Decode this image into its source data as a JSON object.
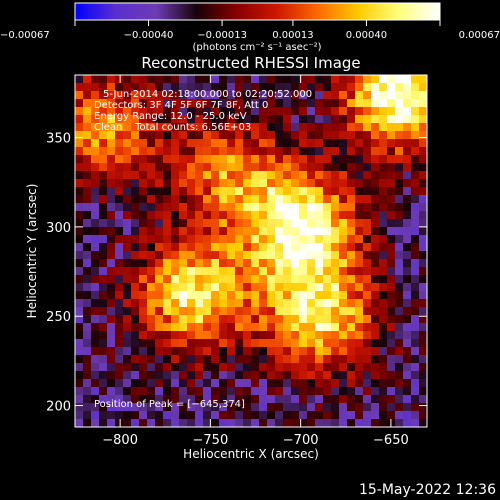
{
  "chart_data": {
    "type": "heatmap",
    "title": "Reconstructed RHESSI Image",
    "xlabel": "Heliocentric X (arcsec)",
    "ylabel": "Heliocentric Y (arcsec)",
    "xlim": [
      -825,
      -630
    ],
    "ylim": [
      188,
      385
    ],
    "x_ticks": [
      -800,
      -750,
      -700,
      -650
    ],
    "x_tick_labels": [
      "−800",
      "−750",
      "−700",
      "−650"
    ],
    "y_ticks": [
      200,
      250,
      300,
      350
    ],
    "y_tick_labels": [
      "200",
      "250",
      "300",
      "350"
    ],
    "colorbar": {
      "range": [
        -0.00067,
        0.00067
      ],
      "ticks": [
        -0.00067,
        -0.0004,
        -0.00013,
        0.00013,
        0.0004,
        0.00067
      ],
      "tick_labels": [
        "−0.00067",
        "−0.00040",
        "−0.00013",
        "0.00013",
        "0.00040",
        "0.00067"
      ],
      "unit_label": "(photons cm⁻² s⁻¹ asec⁻²)",
      "colormap": [
        "#0000ff",
        "#5a2fd0",
        "#6e3cb4",
        "#160208",
        "#8a0000",
        "#d01800",
        "#ff6a00",
        "#ffcc00",
        "#ffff80",
        "#ffffff"
      ]
    },
    "annotations": [
      "5-Jun-2014 02:18:00.000 to 02:20:52.000",
      "Detectors: 3F 4F 5F 6F 7F 8F, Att 0",
      "Energy Range: 12.0 - 25.0 keV",
      "Clean    Total counts: 6.56E+03"
    ],
    "peak_label": "Position of Peak = [−645,374]",
    "peak": [
      -645,
      374
    ],
    "sources": [
      {
        "x": -700,
        "y": 300,
        "intensity": 0.00062
      },
      {
        "x": -760,
        "y": 262,
        "intensity": 0.0005
      },
      {
        "x": -645,
        "y": 374,
        "intensity": 0.00067
      },
      {
        "x": -810,
        "y": 355,
        "intensity": 0.00028
      },
      {
        "x": -690,
        "y": 250,
        "intensity": 0.00045
      },
      {
        "x": -740,
        "y": 330,
        "intensity": 0.00022
      }
    ]
  },
  "footer_timestamp": "15-May-2022 12:36"
}
